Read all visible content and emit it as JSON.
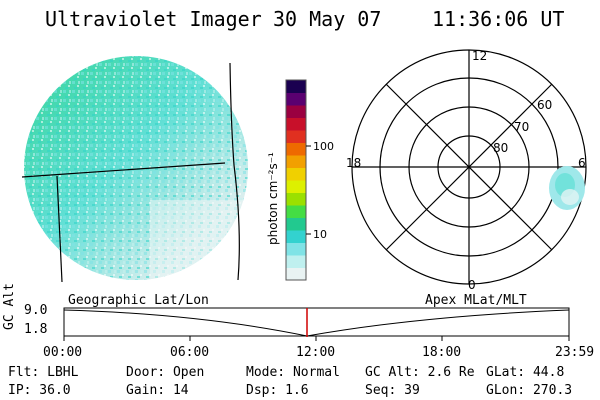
{
  "header": {
    "title": "Ultraviolet Imager",
    "date": "30 May 07",
    "time": "11:36:06 UT"
  },
  "colorbar": {
    "unit_label": "photon cm⁻²s⁻¹",
    "tick_100": "100",
    "tick_10": "10",
    "colors": [
      "#e9f3f3",
      "#bff0ef",
      "#80e3e6",
      "#33d2cf",
      "#22c98f",
      "#44dd44",
      "#9be000",
      "#ddf000",
      "#f0d000",
      "#f2a000",
      "#ee6a00",
      "#e03020",
      "#c8102a",
      "#9a0040",
      "#5a0070",
      "#1a0050"
    ]
  },
  "polar": {
    "labels_mlt": [
      "12",
      "18",
      "6",
      "0"
    ],
    "labels_mlat": [
      "60",
      "70",
      "80"
    ]
  },
  "timeline": {
    "left_label": "Geographic Lat/Lon",
    "right_label": "Apex MLat/MLT",
    "y_axis_title": "GC Alt",
    "y_ticks": [
      "9.0",
      "1.8"
    ],
    "x_ticks": [
      "00:00",
      "06:00",
      "12:00",
      "18:00",
      "23:59"
    ],
    "current_marker_color": "#d00000"
  },
  "footer": {
    "flt": "Flt: LBHL",
    "ip": "IP: 36.0",
    "door": "Door: Open",
    "gain": "Gain: 14",
    "mode": "Mode: Normal",
    "dsp": "Dsp:    1.6",
    "gc_alt": "GC Alt: 2.6 Re",
    "seq": "Seq: 39",
    "glat": "GLat:  44.8",
    "glon": "GLon: 270.3"
  }
}
